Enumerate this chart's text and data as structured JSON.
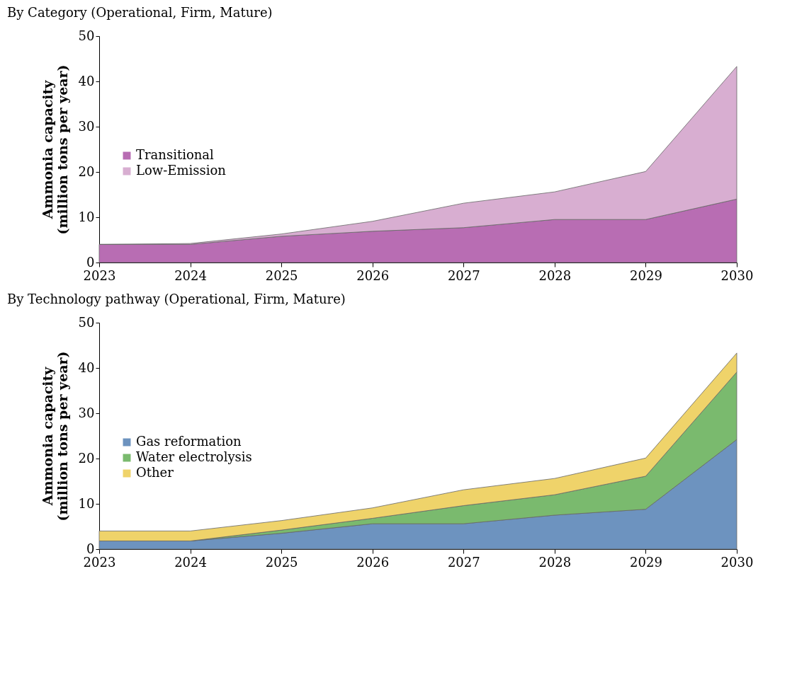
{
  "chart_data": [
    {
      "type": "area",
      "title": "By Category (Operational, Firm, Mature)",
      "ylabel": "Ammonia capacity\n(million tons per year)",
      "categories": [
        "2023",
        "2024",
        "2025",
        "2026",
        "2027",
        "2028",
        "2029",
        "2030"
      ],
      "stacked": true,
      "ylim": [
        0,
        50
      ],
      "yticks": [
        0,
        10,
        20,
        30,
        40,
        50
      ],
      "legend": "left",
      "grid": false,
      "series": [
        {
          "name": "Transitional",
          "color": "#b86db3",
          "values": [
            4,
            4,
            5.8,
            6.9,
            7.7,
            9.5,
            9.5,
            14
          ]
        },
        {
          "name": "Low-Emission",
          "color": "#d8aed1",
          "values": [
            0,
            0.2,
            0.5,
            2.2,
            5.4,
            6.1,
            10.6,
            29.3
          ]
        }
      ]
    },
    {
      "type": "area",
      "title": "By Technology pathway (Operational, Firm, Mature)",
      "ylabel": "Ammonia capacity\n(million tons per year)",
      "categories": [
        "2023",
        "2024",
        "2025",
        "2026",
        "2027",
        "2028",
        "2029",
        "2030"
      ],
      "stacked": true,
      "ylim": [
        0,
        50
      ],
      "yticks": [
        0,
        10,
        20,
        30,
        40,
        50
      ],
      "legend": "left",
      "grid": false,
      "series": [
        {
          "name": "Gas reformation",
          "color": "#6d93bf",
          "values": [
            1.8,
            1.8,
            3.5,
            5.6,
            5.6,
            7.5,
            8.8,
            24.2
          ]
        },
        {
          "name": "Water electrolysis",
          "color": "#7aba6e",
          "values": [
            0,
            0,
            0.7,
            1.2,
            4,
            4.5,
            7.3,
            14.9
          ]
        },
        {
          "name": "Other",
          "color": "#efd36a",
          "values": [
            2.2,
            2.2,
            2.1,
            2.3,
            3.5,
            3.6,
            4,
            4.2
          ]
        }
      ]
    }
  ]
}
